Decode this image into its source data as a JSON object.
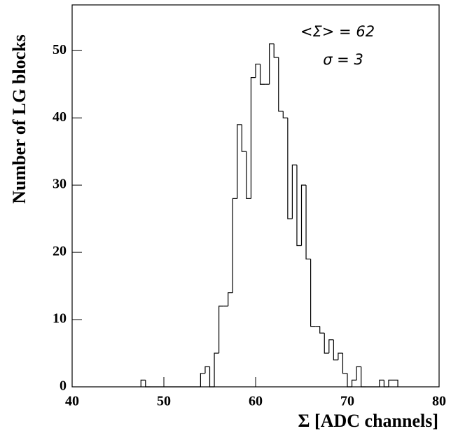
{
  "chart_data": {
    "type": "histogram",
    "annotations": [
      "<Σ> = 62",
      "σ = 3"
    ],
    "x_label": "Σ [ADC channels]",
    "y_label": "Number of LG blocks",
    "bins": [
      47.5,
      48,
      48.5,
      49,
      49.5,
      50,
      50.5,
      51,
      51.5,
      52,
      52.5,
      53,
      53.5,
      54,
      54.5,
      55,
      55.5,
      56,
      56.5,
      57,
      57.5,
      58,
      58.5,
      59,
      59.5,
      60,
      60.5,
      61,
      61.5,
      62,
      62.5,
      63,
      63.5,
      64,
      64.5,
      65,
      65.5,
      66,
      66.5,
      67,
      67.5,
      68,
      68.5,
      69,
      69.5,
      70,
      70.5,
      71,
      71.5,
      72,
      72.5,
      73,
      73.5,
      74,
      74.5,
      75,
      75.5
    ],
    "values": [
      1,
      0,
      0,
      0,
      0,
      0,
      0,
      0,
      0,
      0,
      0,
      0,
      0,
      2,
      3,
      0,
      5,
      12,
      12,
      14,
      28,
      39,
      35,
      28,
      46,
      48,
      45,
      45,
      51,
      49,
      41,
      40,
      25,
      33,
      21,
      30,
      19,
      9,
      9,
      8,
      5,
      7,
      4,
      5,
      2,
      0,
      1,
      3,
      0,
      0,
      0,
      0,
      1,
      0,
      1,
      1
    ],
    "color": "#000000",
    "xlim": [
      40,
      80
    ],
    "xticks": [
      40,
      50,
      60,
      70,
      80
    ],
    "ylim": [
      0,
      56.8
    ],
    "yticks": [
      0,
      10,
      20,
      30,
      40,
      50
    ]
  }
}
